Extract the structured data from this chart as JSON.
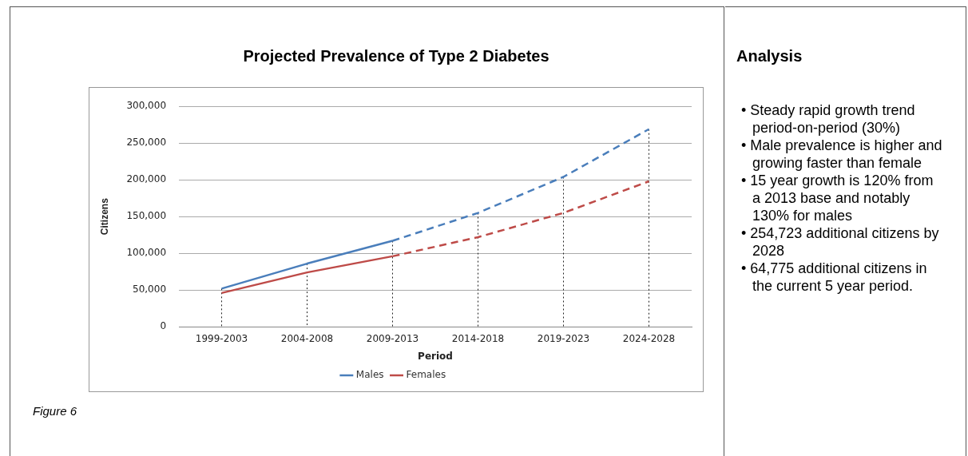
{
  "chart_data": [
    {
      "type": "line",
      "title": "Projected Prevalence of Type 2 Diabetes",
      "xlabel": "Period",
      "ylabel": "Citizens",
      "categories": [
        "1999-2003",
        "2004-2008",
        "2009-2013",
        "2014-2018",
        "2019-2023",
        "2024-2028"
      ],
      "series": [
        {
          "name": "Males",
          "color": "#4a7ebb",
          "line_style": "solid",
          "values": [
            52000,
            86000,
            117000,
            null,
            null,
            null
          ]
        },
        {
          "name": "Females",
          "color": "#be4b48",
          "line_style": "solid",
          "values": [
            46000,
            74000,
            96000,
            null,
            null,
            null
          ]
        },
        {
          "color": "#4a7ebb",
          "line_style": "dashed",
          "values": [
            null,
            null,
            117000,
            155000,
            204000,
            269000
          ]
        },
        {
          "color": "#be4b48",
          "line_style": "dashed",
          "values": [
            null,
            null,
            96000,
            122000,
            155000,
            198000
          ]
        }
      ],
      "ylim": [
        0,
        300000
      ],
      "yticks": [
        {
          "value": 0,
          "label": "0"
        },
        {
          "value": 50000,
          "label": "50,000"
        },
        {
          "value": 100000,
          "label": "100,000"
        },
        {
          "value": 150000,
          "label": "150,000"
        },
        {
          "value": 200000,
          "label": "200,000"
        },
        {
          "value": 250000,
          "label": "250,000"
        },
        {
          "value": 300000,
          "label": "300,000"
        }
      ],
      "grid": "y",
      "legend": "bottom",
      "marker": "none",
      "ref_lines": [
        {
          "axis": "x",
          "value": "1999-2003",
          "color": "#222222",
          "line_style": "dotted"
        },
        {
          "axis": "x",
          "value": "2004-2008",
          "color": "#222222",
          "line_style": "dotted"
        },
        {
          "axis": "x",
          "value": "2009-2013",
          "color": "#222222",
          "line_style": "dotted"
        },
        {
          "axis": "x",
          "value": "2014-2018",
          "color": "#222222",
          "line_style": "dotted"
        },
        {
          "axis": "x",
          "value": "2019-2023",
          "color": "#222222",
          "line_style": "dotted"
        },
        {
          "axis": "x",
          "value": "2024-2028",
          "color": "#222222",
          "line_style": "dotted"
        }
      ],
      "annotations": [
        "Figure 6"
      ]
    },
    {
      "type": "other",
      "title": "Analysis",
      "annotations": [
        "• Steady rapid growth trend period-on-period (30%)",
        "• Male prevalence is higher and growing faster than female",
        "• 15 year growth is 120% from a 2013 base and notably 130% for males",
        "• 254,723 additional citizens by 2028",
        "• 64,775 additional citizens in the current 5 year period."
      ]
    }
  ]
}
